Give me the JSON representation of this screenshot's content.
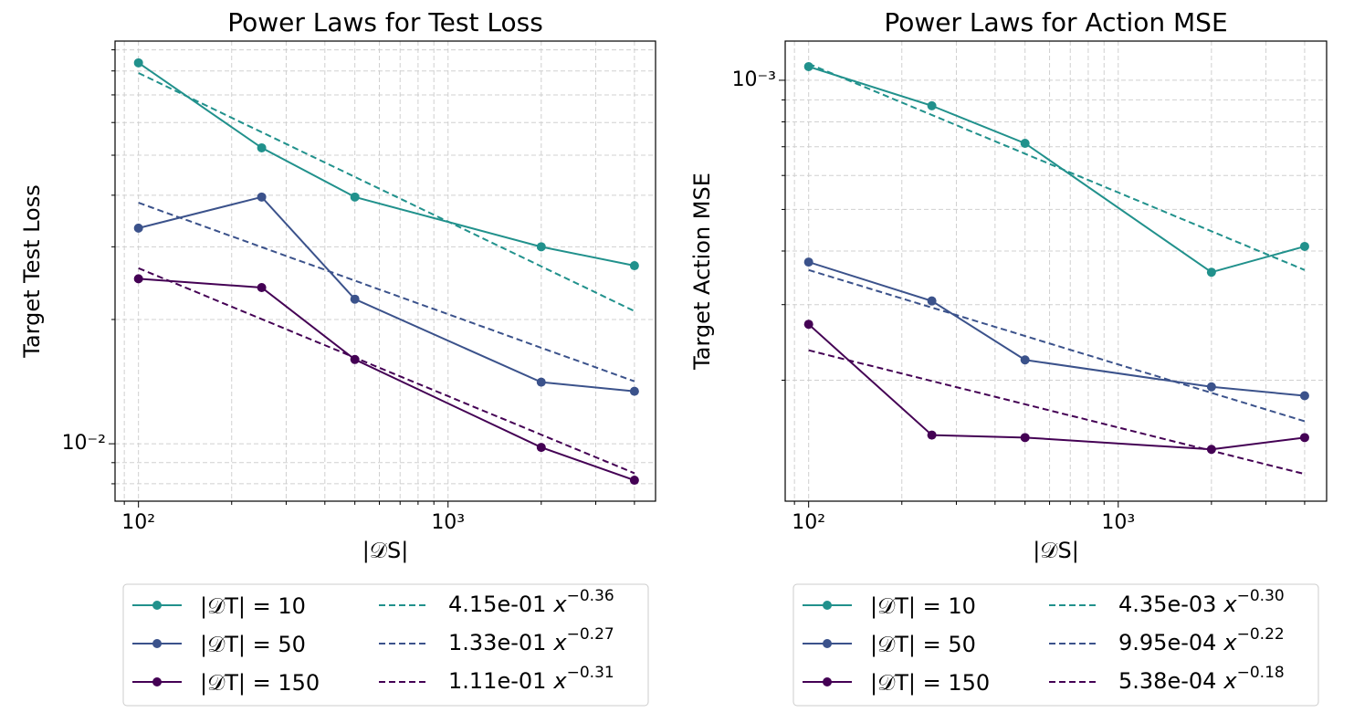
{
  "chart_data": [
    {
      "type": "line",
      "title": "Power Laws for Test Loss",
      "xlabel": "|𝒟S|",
      "ylabel": "Target Test Loss",
      "xscale": "log",
      "yscale": "log",
      "grid": true,
      "legend": "below",
      "x": [
        100,
        250,
        500,
        2000,
        4000
      ],
      "xlim": [
        84,
        4680
      ],
      "ylim": [
        0.00726,
        0.0945
      ],
      "xticks": [
        {
          "value": 100,
          "label": "10²"
        },
        {
          "value": 1000,
          "label": "10³"
        }
      ],
      "xminor": [
        90,
        200,
        300,
        400,
        500,
        600,
        700,
        800,
        900,
        2000,
        3000,
        4000
      ],
      "yticks": [
        {
          "value": 0.01,
          "label": "10⁻²"
        }
      ],
      "yminor": [
        0.008,
        0.009,
        0.02,
        0.03,
        0.04,
        0.05,
        0.06,
        0.07,
        0.08,
        0.09
      ],
      "series": [
        {
          "name": "|𝒟T| = 10",
          "color": "#21918c",
          "values": [
            0.0837,
            0.0521,
            0.0396,
            0.03,
            0.027
          ]
        },
        {
          "name": "|𝒟T| = 50",
          "color": "#3b528b",
          "values": [
            0.0333,
            0.0396,
            0.0224,
            0.0141,
            0.0134
          ]
        },
        {
          "name": "|𝒟T| = 150",
          "color": "#440154",
          "values": [
            0.0251,
            0.0239,
            0.016,
            0.0098,
            0.00816
          ]
        }
      ],
      "fits": [
        {
          "color": "#21918c",
          "coefficient": 0.415,
          "coefficient_label": "4.15e-01",
          "variable": "x",
          "exponent": -0.36,
          "exponent_label": "−0.36"
        },
        {
          "color": "#3b528b",
          "coefficient": 0.133,
          "coefficient_label": "1.33e-01",
          "variable": "x",
          "exponent": -0.27,
          "exponent_label": "−0.27"
        },
        {
          "color": "#440154",
          "coefficient": 0.111,
          "coefficient_label": "1.11e-01",
          "variable": "x",
          "exponent": -0.31,
          "exponent_label": "−0.31"
        }
      ]
    },
    {
      "type": "line",
      "title": "Power Laws for Action MSE",
      "xlabel": "|𝒟S|",
      "ylabel": "Target Action MSE",
      "xscale": "log",
      "yscale": "log",
      "grid": true,
      "legend": "below",
      "x": [
        100,
        250,
        500,
        2000,
        4000
      ],
      "xlim": [
        84,
        4710
      ],
      "ylim": [
        0.0001045,
        0.001234
      ],
      "xticks": [
        {
          "value": 100,
          "label": "10²"
        },
        {
          "value": 1000,
          "label": "10³"
        }
      ],
      "xminor": [
        90,
        200,
        300,
        400,
        500,
        600,
        700,
        800,
        900,
        2000,
        3000,
        4000
      ],
      "yticks": [
        {
          "value": 0.001,
          "label": "10⁻³"
        }
      ],
      "yminor": [
        0.0002,
        0.0003,
        0.0004,
        0.0005,
        0.0006,
        0.0007,
        0.0008,
        0.0009
      ],
      "series": [
        {
          "name": "|𝒟T| = 10",
          "color": "#21918c",
          "values": [
            0.001076,
            0.000872,
            0.000713,
            0.000357,
            0.00041
          ]
        },
        {
          "name": "|𝒟T| = 50",
          "color": "#3b528b",
          "values": [
            0.000377,
            0.000306,
            0.000223,
            0.000193,
            0.000184
          ]
        },
        {
          "name": "|𝒟T| = 150",
          "color": "#440154",
          "values": [
            0.00027,
            0.000149,
            0.000147,
            0.000138,
            0.000147
          ]
        }
      ],
      "fits": [
        {
          "color": "#21918c",
          "coefficient": 0.00435,
          "coefficient_label": "4.35e-03",
          "variable": "x",
          "exponent": -0.3,
          "exponent_label": "−0.30"
        },
        {
          "color": "#3b528b",
          "coefficient": 0.000995,
          "coefficient_label": "9.95e-04",
          "variable": "x",
          "exponent": -0.22,
          "exponent_label": "−0.22"
        },
        {
          "color": "#440154",
          "coefficient": 0.000538,
          "coefficient_label": "5.38e-04",
          "variable": "x",
          "exponent": -0.18,
          "exponent_label": "−0.18"
        }
      ]
    }
  ]
}
